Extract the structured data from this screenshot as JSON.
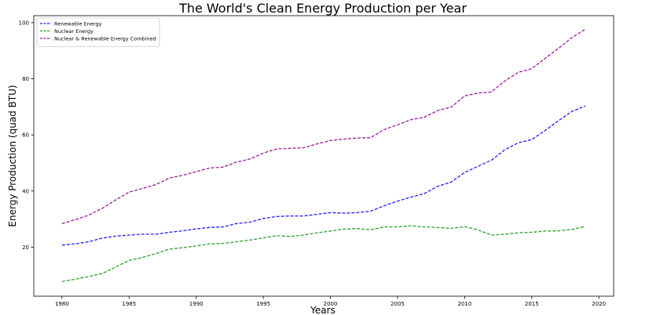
{
  "chart_data": {
    "type": "line",
    "title": "The World's Clean Energy Production per Year",
    "xlabel": "Years",
    "ylabel": "Energy Production (quad BTU)",
    "xlim": [
      1977.9,
      2021.1
    ],
    "ylim": [
      2.5,
      102.5
    ],
    "xticks": [
      1980,
      1985,
      1990,
      1995,
      2000,
      2005,
      2010,
      2015,
      2020
    ],
    "yticks": [
      20,
      40,
      60,
      80,
      100
    ],
    "grid": false,
    "legend_position": "top-left",
    "line_style": "dashed",
    "x": [
      1980,
      1981,
      1982,
      1983,
      1984,
      1985,
      1986,
      1987,
      1988,
      1989,
      1990,
      1991,
      1992,
      1993,
      1994,
      1995,
      1996,
      1997,
      1998,
      1999,
      2000,
      2001,
      2002,
      2003,
      2004,
      2005,
      2006,
      2007,
      2008,
      2009,
      2010,
      2011,
      2012,
      2013,
      2014,
      2015,
      2016,
      2017,
      2018,
      2019
    ],
    "series": [
      {
        "name": "Renewable Energy",
        "color": "#1f1fff",
        "values": [
          20.7,
          21.2,
          21.9,
          23.2,
          23.9,
          24.3,
          24.6,
          24.6,
          25.3,
          25.8,
          26.5,
          27.0,
          27.2,
          28.4,
          28.9,
          30.2,
          30.9,
          31.1,
          31.1,
          31.7,
          32.3,
          32.1,
          32.3,
          32.8,
          34.7,
          36.4,
          37.8,
          39.1,
          41.7,
          43.2,
          46.6,
          48.8,
          51.0,
          54.7,
          57.2,
          58.3,
          61.6,
          65.1,
          68.4,
          70.3
        ]
      },
      {
        "name": "Nuclear Energy",
        "color": "#2ca02c",
        "values": [
          7.7,
          8.6,
          9.5,
          10.6,
          12.9,
          15.3,
          16.3,
          17.7,
          19.3,
          19.8,
          20.4,
          21.2,
          21.3,
          21.9,
          22.5,
          23.3,
          24.1,
          23.8,
          24.3,
          25.1,
          25.7,
          26.4,
          26.6,
          26.2,
          27.2,
          27.2,
          27.6,
          27.2,
          27.0,
          26.7,
          27.3,
          26.1,
          24.3,
          24.6,
          25.1,
          25.3,
          25.7,
          25.8,
          26.3,
          27.4
        ]
      },
      {
        "name": "Nuclear & Renewable Energy Combined",
        "color": "#9a1b9a",
        "values": [
          28.4,
          29.8,
          31.4,
          33.8,
          36.8,
          39.6,
          40.9,
          42.3,
          44.6,
          45.6,
          46.9,
          48.2,
          48.5,
          50.3,
          51.4,
          53.5,
          55.0,
          55.2,
          55.4,
          56.8,
          58.0,
          58.5,
          58.9,
          59.0,
          61.9,
          63.6,
          65.4,
          66.3,
          68.7,
          69.9,
          73.9,
          74.9,
          75.3,
          79.3,
          82.3,
          83.6,
          87.3,
          90.9,
          94.7,
          97.7
        ]
      }
    ]
  }
}
